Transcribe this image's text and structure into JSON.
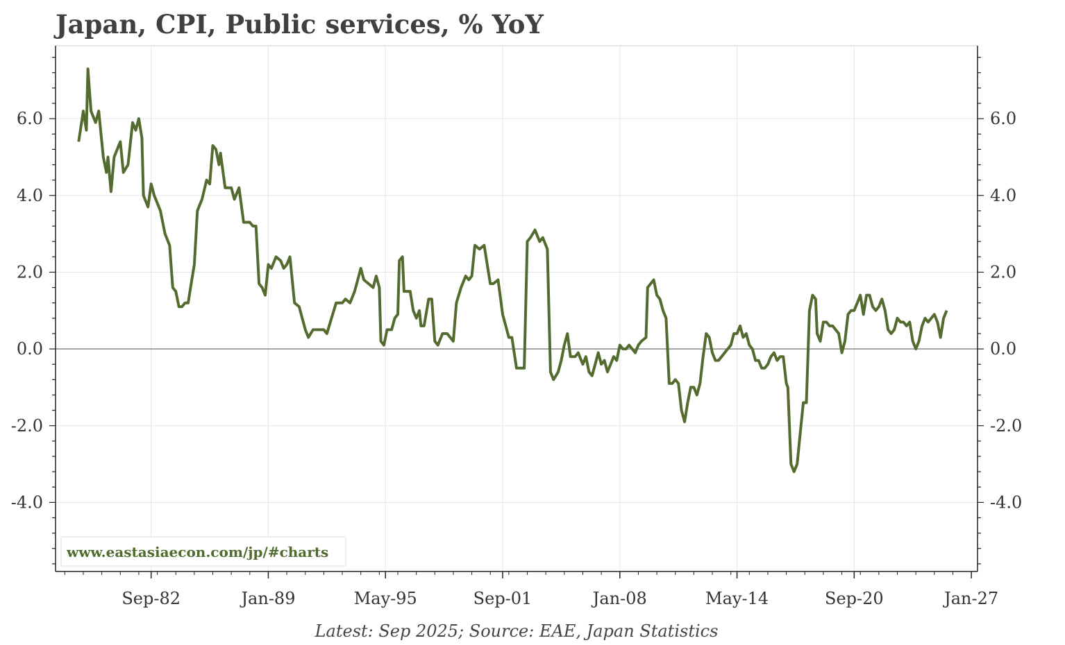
{
  "chart_data": {
    "type": "line",
    "title": "Japan, CPI, Public services, % YoY",
    "caption": "Latest: Sep 2025; Source: EAE, Japan Statistics",
    "watermark": "www.eastasiaecon.com/jp/#charts",
    "xlabel": "",
    "ylabel": "",
    "x_range": [
      "1977-07",
      "2027-05"
    ],
    "ylim": [
      -5.8,
      7.9
    ],
    "y_ticks": [
      -4.0,
      -2.0,
      0.0,
      2.0,
      4.0,
      6.0
    ],
    "y_tick_labels": [
      "-4.0",
      "-2.0",
      "0.0",
      "2.0",
      "4.0",
      "6.0"
    ],
    "x_ticks": [
      "1982-09",
      "1989-01",
      "1995-05",
      "2001-09",
      "2008-01",
      "2014-05",
      "2020-09",
      "2027-01"
    ],
    "x_tick_labels": [
      "Sep-82",
      "Jan-89",
      "May-95",
      "Sep-01",
      "Jan-08",
      "May-14",
      "Sep-20",
      "Jan-27"
    ],
    "grid": true,
    "zero_line": true,
    "line_color": "#546b30",
    "series": [
      {
        "values": [
          [
            "1978-10",
            5.4
          ],
          [
            "1979-01",
            6.2
          ],
          [
            "1979-03",
            5.7
          ],
          [
            "1979-04",
            7.3
          ],
          [
            "1979-06",
            6.2
          ],
          [
            "1979-09",
            5.9
          ],
          [
            "1979-11",
            6.2
          ],
          [
            "1980-02",
            5.0
          ],
          [
            "1980-04",
            4.6
          ],
          [
            "1980-05",
            5.0
          ],
          [
            "1980-07",
            4.1
          ],
          [
            "1980-09",
            5.0
          ],
          [
            "1981-01",
            5.4
          ],
          [
            "1981-03",
            4.6
          ],
          [
            "1981-06",
            4.8
          ],
          [
            "1981-09",
            5.9
          ],
          [
            "1981-11",
            5.7
          ],
          [
            "1982-01",
            6.0
          ],
          [
            "1982-03",
            5.5
          ],
          [
            "1982-04",
            4.0
          ],
          [
            "1982-07",
            3.7
          ],
          [
            "1982-09",
            4.3
          ],
          [
            "1982-11",
            4.0
          ],
          [
            "1983-03",
            3.6
          ],
          [
            "1983-06",
            3.0
          ],
          [
            "1983-09",
            2.7
          ],
          [
            "1983-11",
            1.6
          ],
          [
            "1984-01",
            1.5
          ],
          [
            "1984-03",
            1.1
          ],
          [
            "1984-05",
            1.1
          ],
          [
            "1984-07",
            1.2
          ],
          [
            "1984-09",
            1.2
          ],
          [
            "1984-11",
            1.7
          ],
          [
            "1985-01",
            2.2
          ],
          [
            "1985-03",
            3.6
          ],
          [
            "1985-06",
            3.9
          ],
          [
            "1985-09",
            4.4
          ],
          [
            "1985-11",
            4.3
          ],
          [
            "1986-01",
            5.3
          ],
          [
            "1986-03",
            5.2
          ],
          [
            "1986-05",
            4.8
          ],
          [
            "1986-06",
            5.1
          ],
          [
            "1986-09",
            4.2
          ],
          [
            "1987-01",
            4.2
          ],
          [
            "1987-03",
            3.9
          ],
          [
            "1987-06",
            4.2
          ],
          [
            "1987-09",
            3.3
          ],
          [
            "1988-01",
            3.3
          ],
          [
            "1988-03",
            3.2
          ],
          [
            "1988-05",
            3.2
          ],
          [
            "1988-07",
            1.7
          ],
          [
            "1988-09",
            1.6
          ],
          [
            "1988-11",
            1.4
          ],
          [
            "1989-01",
            2.2
          ],
          [
            "1989-03",
            2.1
          ],
          [
            "1989-06",
            2.4
          ],
          [
            "1989-09",
            2.3
          ],
          [
            "1989-11",
            2.1
          ],
          [
            "1990-01",
            2.2
          ],
          [
            "1990-03",
            2.4
          ],
          [
            "1990-06",
            1.2
          ],
          [
            "1990-09",
            1.1
          ],
          [
            "1990-11",
            0.8
          ],
          [
            "1991-01",
            0.5
          ],
          [
            "1991-03",
            0.3
          ],
          [
            "1991-06",
            0.5
          ],
          [
            "1991-09",
            0.5
          ],
          [
            "1992-01",
            0.5
          ],
          [
            "1992-03",
            0.4
          ],
          [
            "1992-06",
            0.8
          ],
          [
            "1992-09",
            1.2
          ],
          [
            "1993-01",
            1.2
          ],
          [
            "1993-03",
            1.3
          ],
          [
            "1993-06",
            1.2
          ],
          [
            "1993-09",
            1.5
          ],
          [
            "1993-11",
            1.8
          ],
          [
            "1994-01",
            2.1
          ],
          [
            "1994-03",
            1.8
          ],
          [
            "1994-06",
            1.7
          ],
          [
            "1994-09",
            1.6
          ],
          [
            "1994-11",
            1.9
          ],
          [
            "1995-01",
            1.6
          ],
          [
            "1995-02",
            0.2
          ],
          [
            "1995-04",
            0.1
          ],
          [
            "1995-06",
            0.5
          ],
          [
            "1995-09",
            0.5
          ],
          [
            "1995-11",
            0.8
          ],
          [
            "1996-01",
            0.9
          ],
          [
            "1996-02",
            2.3
          ],
          [
            "1996-04",
            2.4
          ],
          [
            "1996-05",
            1.5
          ],
          [
            "1996-09",
            1.5
          ],
          [
            "1996-11",
            1.0
          ],
          [
            "1997-01",
            0.8
          ],
          [
            "1997-03",
            1.0
          ],
          [
            "1997-04",
            0.6
          ],
          [
            "1997-06",
            0.6
          ],
          [
            "1997-09",
            1.3
          ],
          [
            "1997-11",
            1.3
          ],
          [
            "1998-01",
            0.2
          ],
          [
            "1998-03",
            0.1
          ],
          [
            "1998-06",
            0.4
          ],
          [
            "1998-09",
            0.4
          ],
          [
            "1998-11",
            0.3
          ],
          [
            "1999-01",
            0.2
          ],
          [
            "1999-03",
            1.2
          ],
          [
            "1999-06",
            1.6
          ],
          [
            "1999-09",
            1.9
          ],
          [
            "1999-11",
            1.8
          ],
          [
            "2000-01",
            1.9
          ],
          [
            "2000-03",
            2.7
          ],
          [
            "2000-06",
            2.6
          ],
          [
            "2000-09",
            2.7
          ],
          [
            "2000-11",
            2.2
          ],
          [
            "2001-01",
            1.7
          ],
          [
            "2001-03",
            1.7
          ],
          [
            "2001-06",
            1.8
          ],
          [
            "2001-09",
            0.9
          ],
          [
            "2001-11",
            0.6
          ],
          [
            "2002-01",
            0.3
          ],
          [
            "2002-03",
            0.3
          ],
          [
            "2002-06",
            -0.5
          ],
          [
            "2002-09",
            -0.5
          ],
          [
            "2002-11",
            -0.5
          ],
          [
            "2003-01",
            2.8
          ],
          [
            "2003-03",
            2.9
          ],
          [
            "2003-06",
            3.1
          ],
          [
            "2003-09",
            2.8
          ],
          [
            "2003-11",
            2.9
          ],
          [
            "2004-01",
            2.7
          ],
          [
            "2004-02",
            2.6
          ],
          [
            "2004-04",
            -0.6
          ],
          [
            "2004-06",
            -0.8
          ],
          [
            "2004-09",
            -0.6
          ],
          [
            "2004-11",
            -0.3
          ],
          [
            "2005-01",
            0.1
          ],
          [
            "2005-03",
            0.4
          ],
          [
            "2005-05",
            -0.2
          ],
          [
            "2005-08",
            -0.2
          ],
          [
            "2005-10",
            -0.1
          ],
          [
            "2006-01",
            -0.4
          ],
          [
            "2006-03",
            -0.2
          ],
          [
            "2006-05",
            -0.6
          ],
          [
            "2006-07",
            -0.7
          ],
          [
            "2006-09",
            -0.4
          ],
          [
            "2006-11",
            -0.1
          ],
          [
            "2007-01",
            -0.4
          ],
          [
            "2007-03",
            -0.3
          ],
          [
            "2007-05",
            -0.6
          ],
          [
            "2007-07",
            -0.4
          ],
          [
            "2007-09",
            -0.2
          ],
          [
            "2007-11",
            -0.3
          ],
          [
            "2008-01",
            0.1
          ],
          [
            "2008-03",
            0.0
          ],
          [
            "2008-05",
            0.0
          ],
          [
            "2008-07",
            0.1
          ],
          [
            "2008-09",
            0.0
          ],
          [
            "2008-11",
            -0.1
          ],
          [
            "2009-01",
            0.1
          ],
          [
            "2009-03",
            0.2
          ],
          [
            "2009-06",
            0.3
          ],
          [
            "2009-07",
            1.6
          ],
          [
            "2009-09",
            1.7
          ],
          [
            "2009-11",
            1.8
          ],
          [
            "2010-01",
            1.4
          ],
          [
            "2010-03",
            1.3
          ],
          [
            "2010-05",
            1.0
          ],
          [
            "2010-07",
            0.8
          ],
          [
            "2010-09",
            -0.9
          ],
          [
            "2010-11",
            -0.9
          ],
          [
            "2011-01",
            -0.8
          ],
          [
            "2011-03",
            -0.9
          ],
          [
            "2011-05",
            -1.6
          ],
          [
            "2011-07",
            -1.9
          ],
          [
            "2011-09",
            -1.4
          ],
          [
            "2011-11",
            -1.0
          ],
          [
            "2012-01",
            -1.0
          ],
          [
            "2012-03",
            -1.2
          ],
          [
            "2012-05",
            -0.9
          ],
          [
            "2012-07",
            -0.2
          ],
          [
            "2012-09",
            0.4
          ],
          [
            "2012-11",
            0.3
          ],
          [
            "2013-01",
            -0.1
          ],
          [
            "2013-03",
            -0.3
          ],
          [
            "2013-05",
            -0.3
          ],
          [
            "2013-07",
            -0.2
          ],
          [
            "2013-09",
            -0.1
          ],
          [
            "2013-11",
            0.0
          ],
          [
            "2014-01",
            0.1
          ],
          [
            "2014-03",
            0.4
          ],
          [
            "2014-05",
            0.4
          ],
          [
            "2014-07",
            0.6
          ],
          [
            "2014-09",
            0.3
          ],
          [
            "2014-11",
            0.4
          ],
          [
            "2015-01",
            0.1
          ],
          [
            "2015-03",
            0.0
          ],
          [
            "2015-05",
            -0.3
          ],
          [
            "2015-07",
            -0.3
          ],
          [
            "2015-09",
            -0.5
          ],
          [
            "2015-11",
            -0.5
          ],
          [
            "2016-01",
            -0.4
          ],
          [
            "2016-03",
            -0.2
          ],
          [
            "2016-05",
            -0.1
          ],
          [
            "2016-07",
            -0.3
          ],
          [
            "2016-09",
            -0.2
          ],
          [
            "2016-11",
            -0.2
          ],
          [
            "2017-01",
            -0.9
          ],
          [
            "2017-02",
            -1.0
          ],
          [
            "2017-04",
            -3.0
          ],
          [
            "2017-06",
            -3.2
          ],
          [
            "2017-08",
            -3.0
          ],
          [
            "2017-10",
            -2.2
          ],
          [
            "2017-12",
            -1.4
          ],
          [
            "2018-02",
            -1.4
          ],
          [
            "2018-04",
            1.0
          ],
          [
            "2018-06",
            1.4
          ],
          [
            "2018-08",
            1.3
          ],
          [
            "2018-09",
            0.4
          ],
          [
            "2018-11",
            0.2
          ],
          [
            "2019-01",
            0.7
          ],
          [
            "2019-03",
            0.7
          ],
          [
            "2019-05",
            0.6
          ],
          [
            "2019-07",
            0.6
          ],
          [
            "2019-09",
            0.5
          ],
          [
            "2019-11",
            0.4
          ],
          [
            "2020-01",
            -0.1
          ],
          [
            "2020-03",
            0.2
          ],
          [
            "2020-05",
            0.9
          ],
          [
            "2020-07",
            1.0
          ],
          [
            "2020-09",
            1.0
          ],
          [
            "2020-11",
            1.2
          ],
          [
            "2021-01",
            1.4
          ],
          [
            "2021-03",
            0.9
          ],
          [
            "2021-05",
            1.4
          ],
          [
            "2021-07",
            1.4
          ],
          [
            "2021-09",
            1.1
          ],
          [
            "2021-11",
            1.0
          ],
          [
            "2022-01",
            1.1
          ],
          [
            "2022-03",
            1.3
          ],
          [
            "2022-05",
            1.0
          ],
          [
            "2022-07",
            0.5
          ],
          [
            "2022-09",
            0.4
          ],
          [
            "2022-11",
            0.5
          ],
          [
            "2023-01",
            0.8
          ],
          [
            "2023-03",
            0.7
          ],
          [
            "2023-05",
            0.7
          ],
          [
            "2023-07",
            0.6
          ],
          [
            "2023-09",
            0.7
          ],
          [
            "2023-11",
            0.2
          ],
          [
            "2024-01",
            0.0
          ],
          [
            "2024-03",
            0.2
          ],
          [
            "2024-05",
            0.6
          ],
          [
            "2024-07",
            0.8
          ],
          [
            "2024-09",
            0.7
          ],
          [
            "2024-11",
            0.8
          ],
          [
            "2025-01",
            0.9
          ],
          [
            "2025-03",
            0.7
          ],
          [
            "2025-05",
            0.3
          ],
          [
            "2025-07",
            0.8
          ],
          [
            "2025-09",
            1.0
          ]
        ]
      }
    ]
  }
}
